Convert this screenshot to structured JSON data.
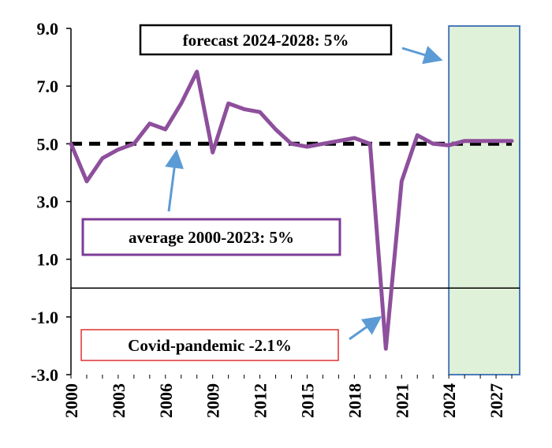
{
  "chart_data": {
    "type": "line",
    "title": "",
    "xlabel": "",
    "ylabel": "",
    "xlim": [
      2000,
      2028.5
    ],
    "ylim": [
      -3.0,
      9.0
    ],
    "grid": false,
    "y_ticks": [
      "9.0",
      "7.0",
      "5.0",
      "3.0",
      "1.0",
      "-1.0",
      "-3.0"
    ],
    "x_ticks": [
      "2000",
      "2003",
      "2006",
      "2009",
      "2012",
      "2015",
      "2018",
      "2021",
      "2024",
      "2027"
    ],
    "series": [
      {
        "color": "#8e4f9c",
        "x": [
          2000,
          2001,
          2002,
          2003,
          2004,
          2005,
          2006,
          2007,
          2008,
          2009,
          2010,
          2011,
          2012,
          2013,
          2014,
          2015,
          2016,
          2017,
          2018,
          2019,
          2020,
          2021,
          2022,
          2023,
          2024,
          2025,
          2026,
          2027,
          2028
        ],
        "values": [
          5.0,
          3.7,
          4.5,
          4.8,
          5.0,
          5.7,
          5.5,
          6.4,
          7.5,
          4.7,
          6.4,
          6.2,
          6.1,
          5.5,
          5.0,
          4.9,
          5.0,
          5.1,
          5.2,
          5.0,
          -2.1,
          3.7,
          5.3,
          5.0,
          4.95,
          5.1,
          5.1,
          5.1,
          5.1
        ]
      },
      {
        "color": "#000000",
        "style": "dashed",
        "x": [
          2000,
          2028
        ],
        "values": [
          5.0,
          5.0
        ]
      }
    ],
    "forecast_region": {
      "start": 2024,
      "end": 2028.5,
      "fill": "#dff1d8",
      "border": "#4a7ab8"
    },
    "annotations": [
      {
        "text": "forecast 2024-2028: 5%",
        "border": "#000000"
      },
      {
        "text": "average 2000-2023: 5%",
        "border": "#7d3c98"
      },
      {
        "text": "Covid-pandemic -2.1%",
        "border": "#e03030"
      }
    ],
    "arrow_color": "#5b9bd5"
  }
}
